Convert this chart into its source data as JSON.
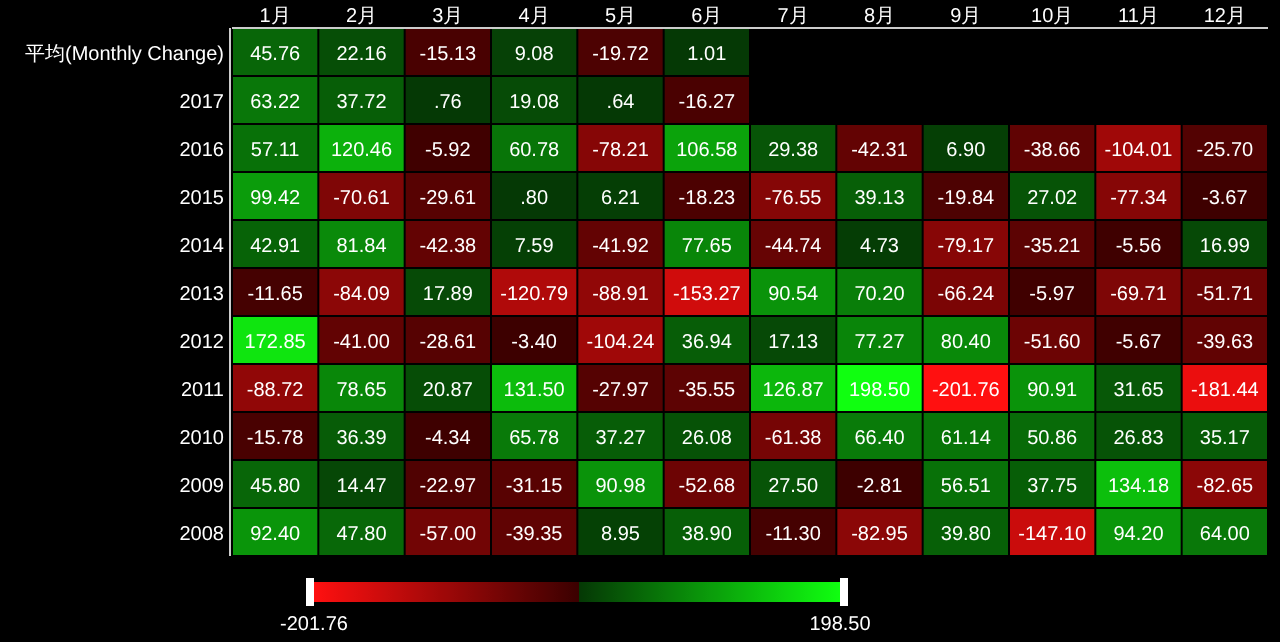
{
  "chart_data": {
    "type": "heatmap",
    "categories": [
      "1月",
      "2月",
      "3月",
      "4月",
      "5月",
      "6月",
      "7月",
      "8月",
      "9月",
      "10月",
      "11月",
      "12月"
    ],
    "y_categories": [
      "平均(Monthly Change)",
      "2017",
      "2016",
      "2015",
      "2014",
      "2013",
      "2012",
      "2011",
      "2010",
      "2009",
      "2008"
    ],
    "cells": [
      [
        45.76,
        22.16,
        -15.13,
        9.08,
        -19.72,
        1.01,
        null,
        null,
        null,
        null,
        null,
        null
      ],
      [
        63.22,
        37.72,
        0.76,
        19.08,
        0.64,
        -16.27,
        null,
        null,
        null,
        null,
        null,
        null
      ],
      [
        57.11,
        120.46,
        -5.92,
        60.78,
        -78.21,
        106.58,
        29.38,
        -42.31,
        6.9,
        -38.66,
        -104.01,
        -25.7
      ],
      [
        99.42,
        -70.61,
        -29.61,
        0.8,
        6.21,
        -18.23,
        -76.55,
        39.13,
        -19.84,
        27.02,
        -77.34,
        -3.67
      ],
      [
        42.91,
        81.84,
        -42.38,
        7.59,
        -41.92,
        77.65,
        -44.74,
        4.73,
        -79.17,
        -35.21,
        -5.56,
        16.99
      ],
      [
        -11.65,
        -84.09,
        17.89,
        -120.79,
        -88.91,
        -153.27,
        90.54,
        70.2,
        -66.24,
        -5.97,
        -69.71,
        -51.71
      ],
      [
        172.85,
        -41,
        -28.61,
        -3.4,
        -104.24,
        36.94,
        17.13,
        77.27,
        80.4,
        -51.6,
        -5.67,
        -39.63
      ],
      [
        -88.72,
        78.65,
        20.87,
        131.5,
        -27.97,
        -35.55,
        126.87,
        198.5,
        -201.76,
        90.91,
        31.65,
        -181.44
      ],
      [
        -15.78,
        36.39,
        -4.34,
        65.78,
        37.27,
        26.08,
        -61.38,
        66.4,
        61.14,
        50.86,
        26.83,
        35.17
      ],
      [
        45.8,
        14.47,
        -22.97,
        -31.15,
        90.98,
        -52.68,
        27.5,
        -2.81,
        56.51,
        37.75,
        134.18,
        -82.65
      ],
      [
        92.4,
        47.8,
        -57,
        -39.35,
        8.95,
        38.9,
        -11.3,
        -82.95,
        39.8,
        -147.1,
        94.2,
        64
      ]
    ],
    "cell_labels": [
      [
        "45.76",
        "22.16",
        "-15.13",
        "9.08",
        "-19.72",
        "1.01",
        null,
        null,
        null,
        null,
        null,
        null
      ],
      [
        "63.22",
        "37.72",
        ".76",
        "19.08",
        ".64",
        "-16.27",
        null,
        null,
        null,
        null,
        null,
        null
      ],
      [
        "57.11",
        "120.46",
        "-5.92",
        "60.78",
        "-78.21",
        "106.58",
        "29.38",
        "-42.31",
        "6.90",
        "-38.66",
        "-104.01",
        "-25.70"
      ],
      [
        "99.42",
        "-70.61",
        "-29.61",
        ".80",
        "6.21",
        "-18.23",
        "-76.55",
        "39.13",
        "-19.84",
        "27.02",
        "-77.34",
        "-3.67"
      ],
      [
        "42.91",
        "81.84",
        "-42.38",
        "7.59",
        "-41.92",
        "77.65",
        "-44.74",
        "4.73",
        "-79.17",
        "-35.21",
        "-5.56",
        "16.99"
      ],
      [
        "-11.65",
        "-84.09",
        "17.89",
        "-120.79",
        "-88.91",
        "-153.27",
        "90.54",
        "70.20",
        "-66.24",
        "-5.97",
        "-69.71",
        "-51.71"
      ],
      [
        "172.85",
        "-41.00",
        "-28.61",
        "-3.40",
        "-104.24",
        "36.94",
        "17.13",
        "77.27",
        "80.40",
        "-51.60",
        "-5.67",
        "-39.63"
      ],
      [
        "-88.72",
        "78.65",
        "20.87",
        "131.50",
        "-27.97",
        "-35.55",
        "126.87",
        "198.50",
        "-201.76",
        "90.91",
        "31.65",
        "-181.44"
      ],
      [
        "-15.78",
        "36.39",
        "-4.34",
        "65.78",
        "37.27",
        "26.08",
        "-61.38",
        "66.40",
        "61.14",
        "50.86",
        "26.83",
        "35.17"
      ],
      [
        "45.80",
        "14.47",
        "-22.97",
        "-31.15",
        "90.98",
        "-52.68",
        "27.50",
        "-2.81",
        "56.51",
        "37.75",
        "134.18",
        "-82.65"
      ],
      [
        "92.40",
        "47.80",
        "-57.00",
        "-39.35",
        "8.95",
        "38.90",
        "-11.30",
        "-82.95",
        "39.80",
        "-147.10",
        "94.20",
        "64.00"
      ]
    ],
    "clim": [
      -201.76,
      198.5
    ],
    "cticks": [
      {
        "value": -201.76,
        "label": "-201.76"
      },
      {
        "value": 198.5,
        "label": "198.50"
      }
    ]
  }
}
